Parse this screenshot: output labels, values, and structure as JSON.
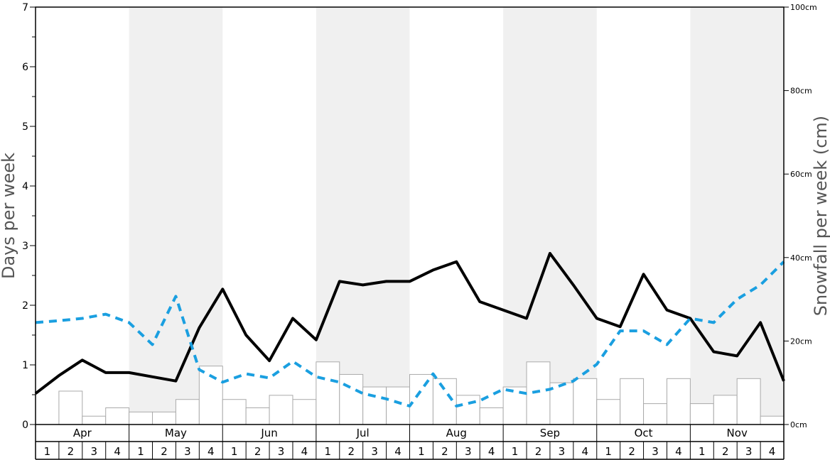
{
  "chart_data": {
    "type": "line",
    "title": "",
    "ylabel_left": "Days per week",
    "ylabel_right": "Snowfall per week (cm)",
    "ylim_left": [
      0,
      7
    ],
    "ylim_right": [
      0,
      100
    ],
    "y_left_ticks": [
      "0",
      "1",
      "2",
      "3",
      "4",
      "5",
      "6",
      "7"
    ],
    "y_right_ticks": [
      "0cm",
      "20cm",
      "40cm",
      "60cm",
      "80cm",
      "100cm"
    ],
    "months": [
      "Apr",
      "May",
      "Jun",
      "Jul",
      "Aug",
      "Sep",
      "Oct",
      "Nov"
    ],
    "week_labels": [
      "1",
      "2",
      "3",
      "4"
    ],
    "shaded_months": [
      "May",
      "Jul",
      "Sep",
      "Nov"
    ],
    "colors": {
      "bar_fill": "#ffffff",
      "bar_stroke": "#aaaaaa",
      "black_series": "#000000",
      "blue_series": "#1a9fe0",
      "shade": "#f0f0f0"
    },
    "series": [
      {
        "axis": "right",
        "style": "bar",
        "values": [
          0,
          8,
          2,
          4,
          3,
          3,
          6,
          14,
          6,
          4,
          7,
          6,
          15,
          12,
          9,
          9,
          12,
          11,
          7,
          4,
          9,
          15,
          10,
          11,
          6,
          11,
          5,
          11,
          5,
          7,
          11,
          2
        ]
      },
      {
        "axis": "left",
        "style": "solid",
        "values": [
          0.52,
          0.82,
          1.08,
          0.87,
          0.87,
          0.8,
          0.73,
          1.62,
          2.27,
          1.5,
          1.07,
          1.78,
          1.42,
          2.4,
          2.34,
          2.4,
          2.4,
          2.59,
          2.73,
          2.06,
          1.92,
          1.78,
          2.87,
          2.34,
          1.78,
          1.64,
          2.52,
          1.92,
          1.78,
          1.22,
          1.15,
          1.71,
          0.73
        ]
      },
      {
        "axis": "left",
        "style": "dashed",
        "values": [
          1.71,
          1.74,
          1.78,
          1.85,
          1.71,
          1.34,
          2.15,
          0.92,
          0.71,
          0.85,
          0.78,
          1.06,
          0.8,
          0.71,
          0.52,
          0.43,
          0.31,
          0.85,
          0.31,
          0.4,
          0.59,
          0.52,
          0.59,
          0.73,
          1.01,
          1.57,
          1.57,
          1.34,
          1.78,
          1.71,
          2.1,
          2.34,
          2.73
        ]
      }
    ]
  }
}
